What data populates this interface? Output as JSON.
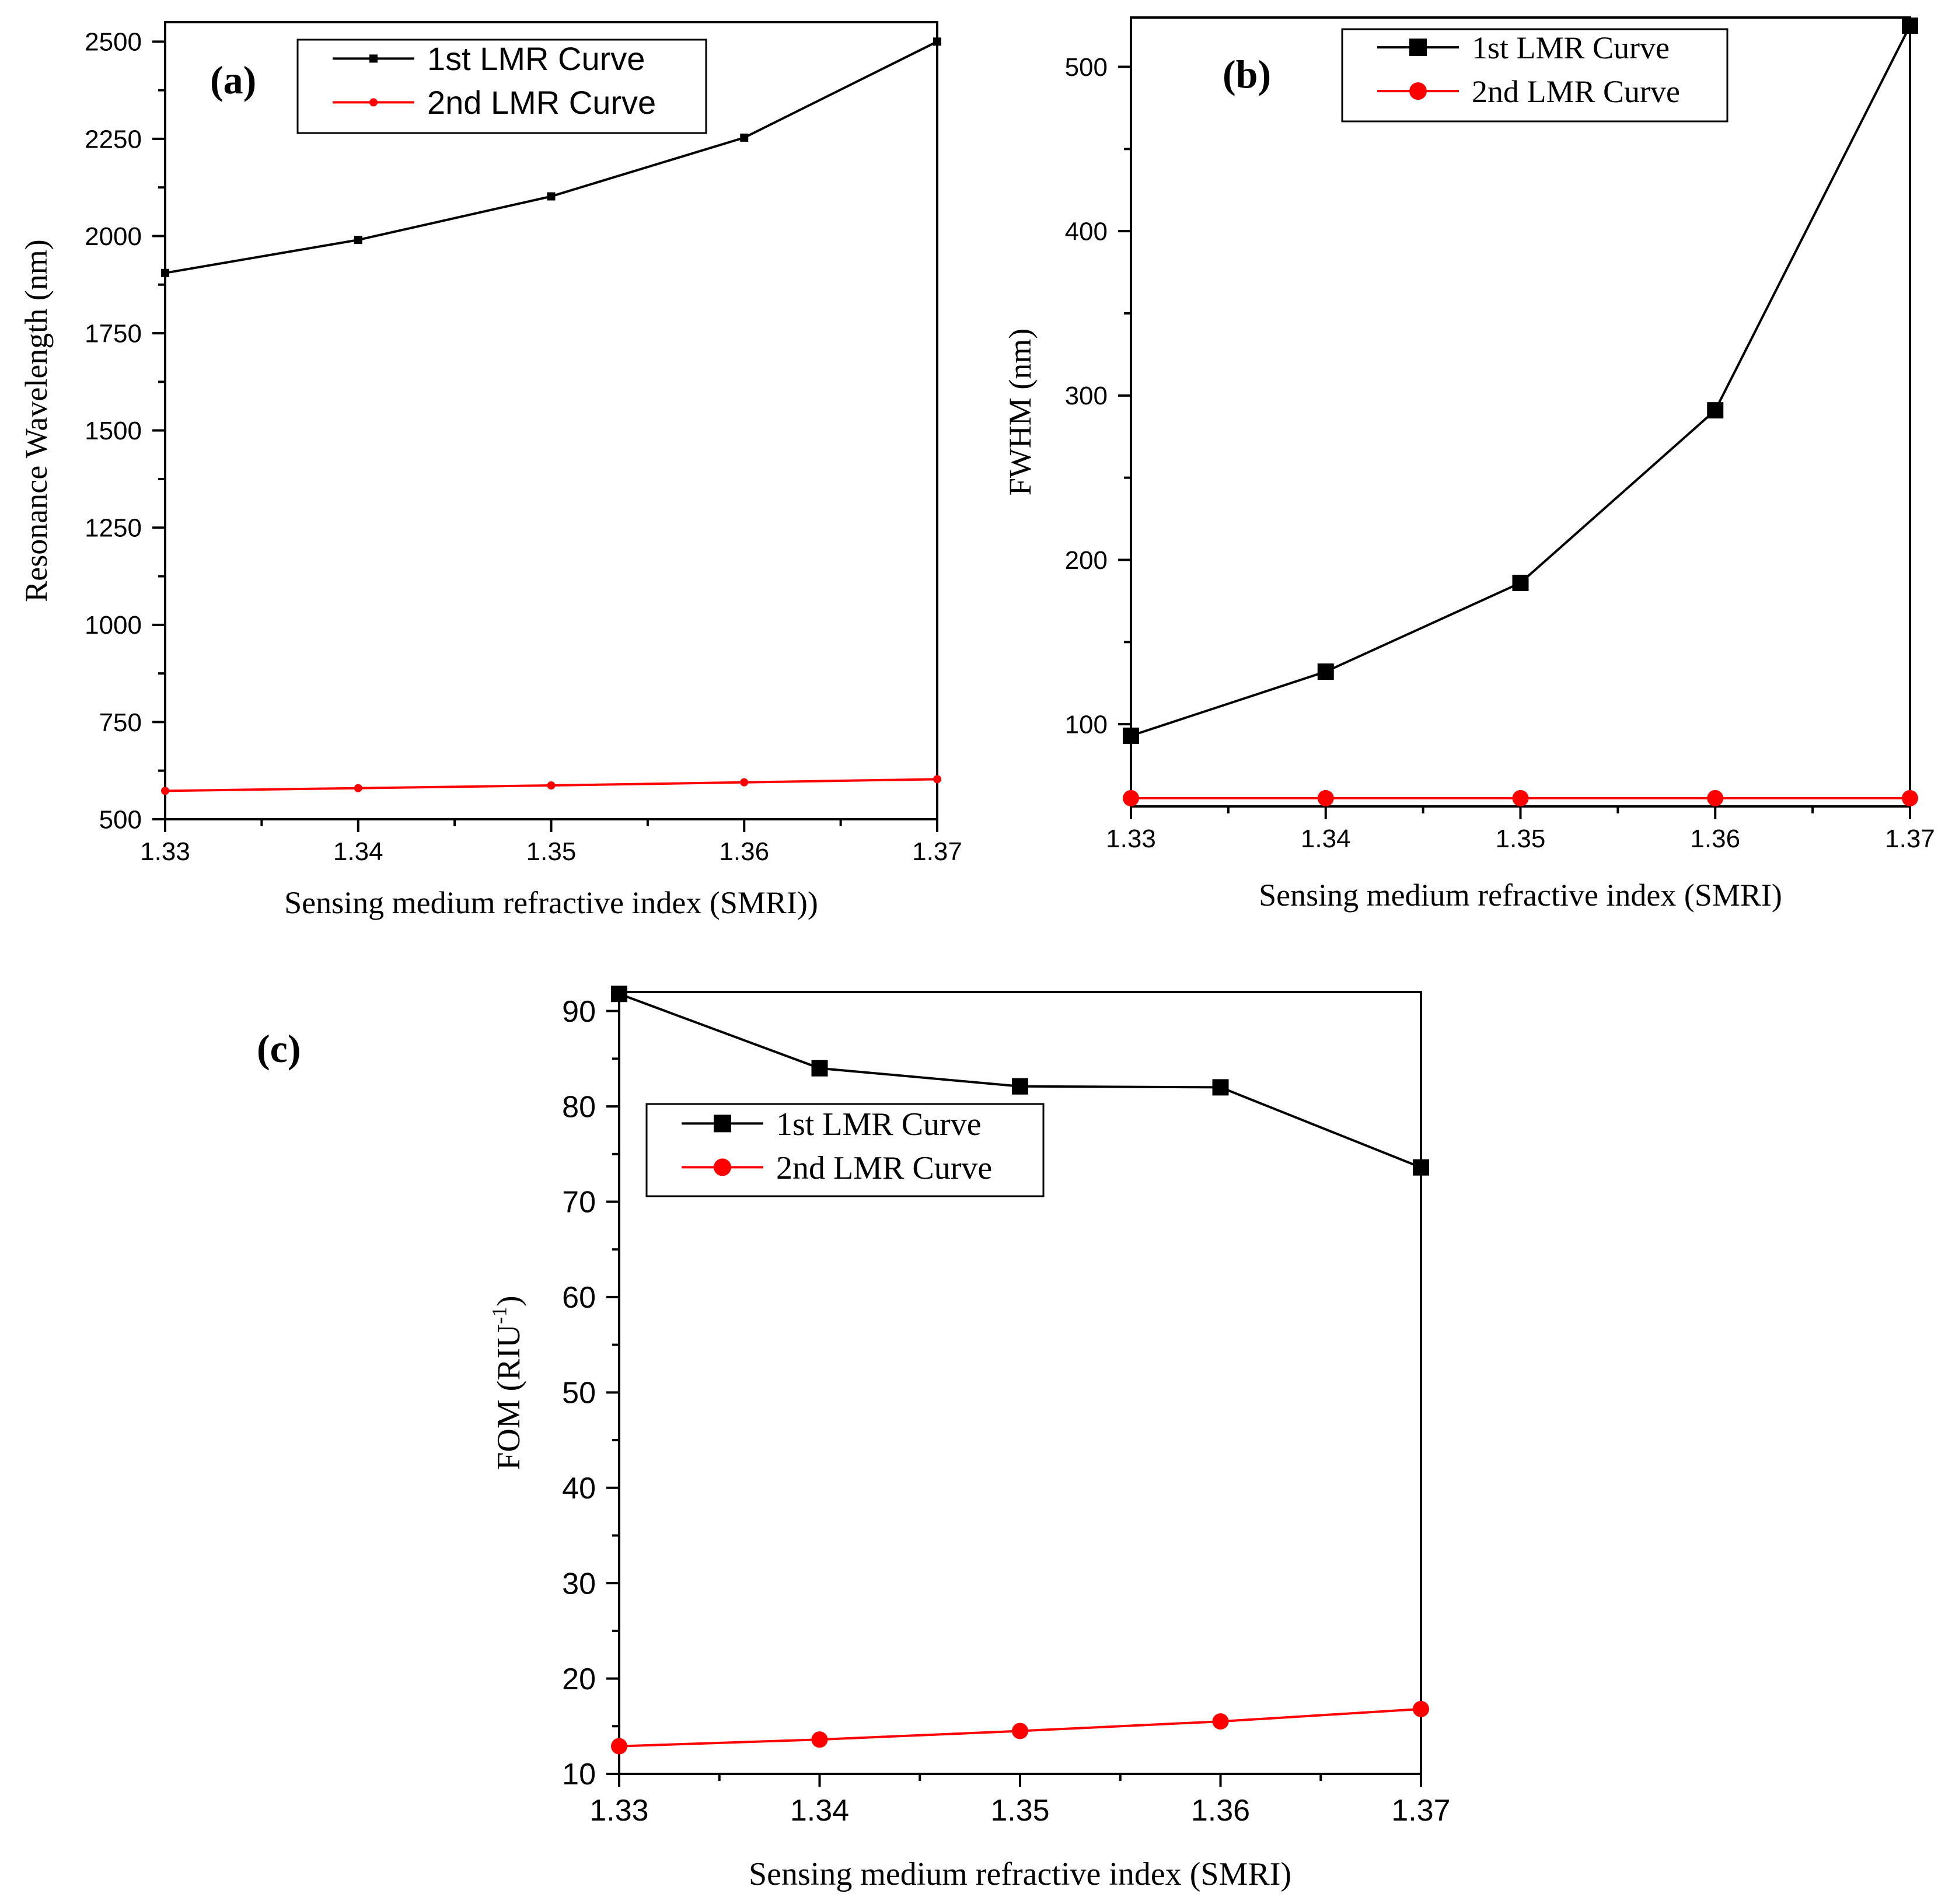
{
  "chart_data": [
    {
      "type": "line",
      "panel_label": "(a)",
      "xlabel": "Sensing medium refractive index (SMRI))",
      "ylabel": "Resonance Wavelength (nm)",
      "x": [
        1.33,
        1.34,
        1.35,
        1.36,
        1.37
      ],
      "xlim": [
        1.33,
        1.37
      ],
      "xticks": [
        "1.33",
        "1.34",
        "1.35",
        "1.36",
        "1.37"
      ],
      "ylim": [
        500,
        2550
      ],
      "yticks": [
        "500",
        "750",
        "1000",
        "1250",
        "1500",
        "1750",
        "2000",
        "2250",
        "2500"
      ],
      "legend": "top-center",
      "grid": false,
      "series": [
        {
          "name": "1st LMR Curve",
          "color": "#000000",
          "marker": "square",
          "values": [
            1905,
            1990,
            2102,
            2253,
            2500
          ]
        },
        {
          "name": "2nd LMR Curve",
          "color": "#ff0000",
          "marker": "circle",
          "values": [
            573,
            580,
            587,
            595,
            603
          ]
        }
      ]
    },
    {
      "type": "line",
      "panel_label": "(b)",
      "xlabel": "Sensing medium refractive index (SMRI)",
      "ylabel": "FWHM (nm)",
      "x": [
        1.33,
        1.34,
        1.35,
        1.36,
        1.37
      ],
      "xlim": [
        1.33,
        1.37
      ],
      "xticks": [
        "1.33",
        "1.34",
        "1.35",
        "1.36",
        "1.37"
      ],
      "ylim": [
        50,
        530
      ],
      "yticks": [
        "100",
        "200",
        "300",
        "400",
        "500"
      ],
      "legend": "top-center",
      "grid": false,
      "series": [
        {
          "name": "1st LMR Curve",
          "color": "#000000",
          "marker": "square",
          "values": [
            93,
            132,
            186,
            291,
            525
          ]
        },
        {
          "name": "2nd LMR Curve",
          "color": "#ff0000",
          "marker": "circle",
          "values": [
            55,
            55,
            55,
            55,
            55
          ]
        }
      ]
    },
    {
      "type": "line",
      "panel_label": "(c)",
      "xlabel": "Sensing medium refractive index (SMRI)",
      "ylabel": "FOM (RIU",
      "ylabel_sup": "-1",
      "ylabel_suffix": ")",
      "x": [
        1.33,
        1.34,
        1.35,
        1.36,
        1.37
      ],
      "xlim": [
        1.33,
        1.37
      ],
      "xticks": [
        "1.33",
        "1.34",
        "1.35",
        "1.36",
        "1.37"
      ],
      "ylim": [
        10,
        92
      ],
      "yticks": [
        "10",
        "20",
        "30",
        "40",
        "50",
        "60",
        "70",
        "80",
        "90"
      ],
      "legend": "upper-left",
      "grid": false,
      "series": [
        {
          "name": "1st LMR Curve",
          "color": "#000000",
          "marker": "square",
          "values": [
            91.8,
            84.0,
            82.1,
            82.0,
            73.6
          ]
        },
        {
          "name": "2nd LMR Curve",
          "color": "#ff0000",
          "marker": "circle",
          "values": [
            12.9,
            13.6,
            14.5,
            15.5,
            16.8
          ]
        }
      ]
    }
  ]
}
